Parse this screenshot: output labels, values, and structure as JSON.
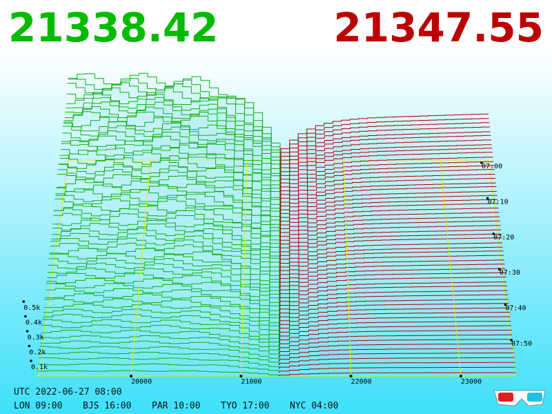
{
  "header": {
    "bid": "21338.42",
    "ask": "21347.55"
  },
  "price_axis": [
    20000,
    21000,
    22000,
    23000
  ],
  "depth_axis": [
    "0.1k",
    "0.2k",
    "0.3k",
    "0.4k",
    "0.5k"
  ],
  "time_axis": [
    "07:00",
    "07:10",
    "07:20",
    "07:30",
    "07:40",
    "07:50"
  ],
  "footer": {
    "utc": "UTC 2022-06-27 08:00",
    "zones": [
      "LON 09:00",
      "BJS 16:00",
      "PAR 10:00",
      "TYO 17:00",
      "NYC 04:00"
    ]
  }
}
